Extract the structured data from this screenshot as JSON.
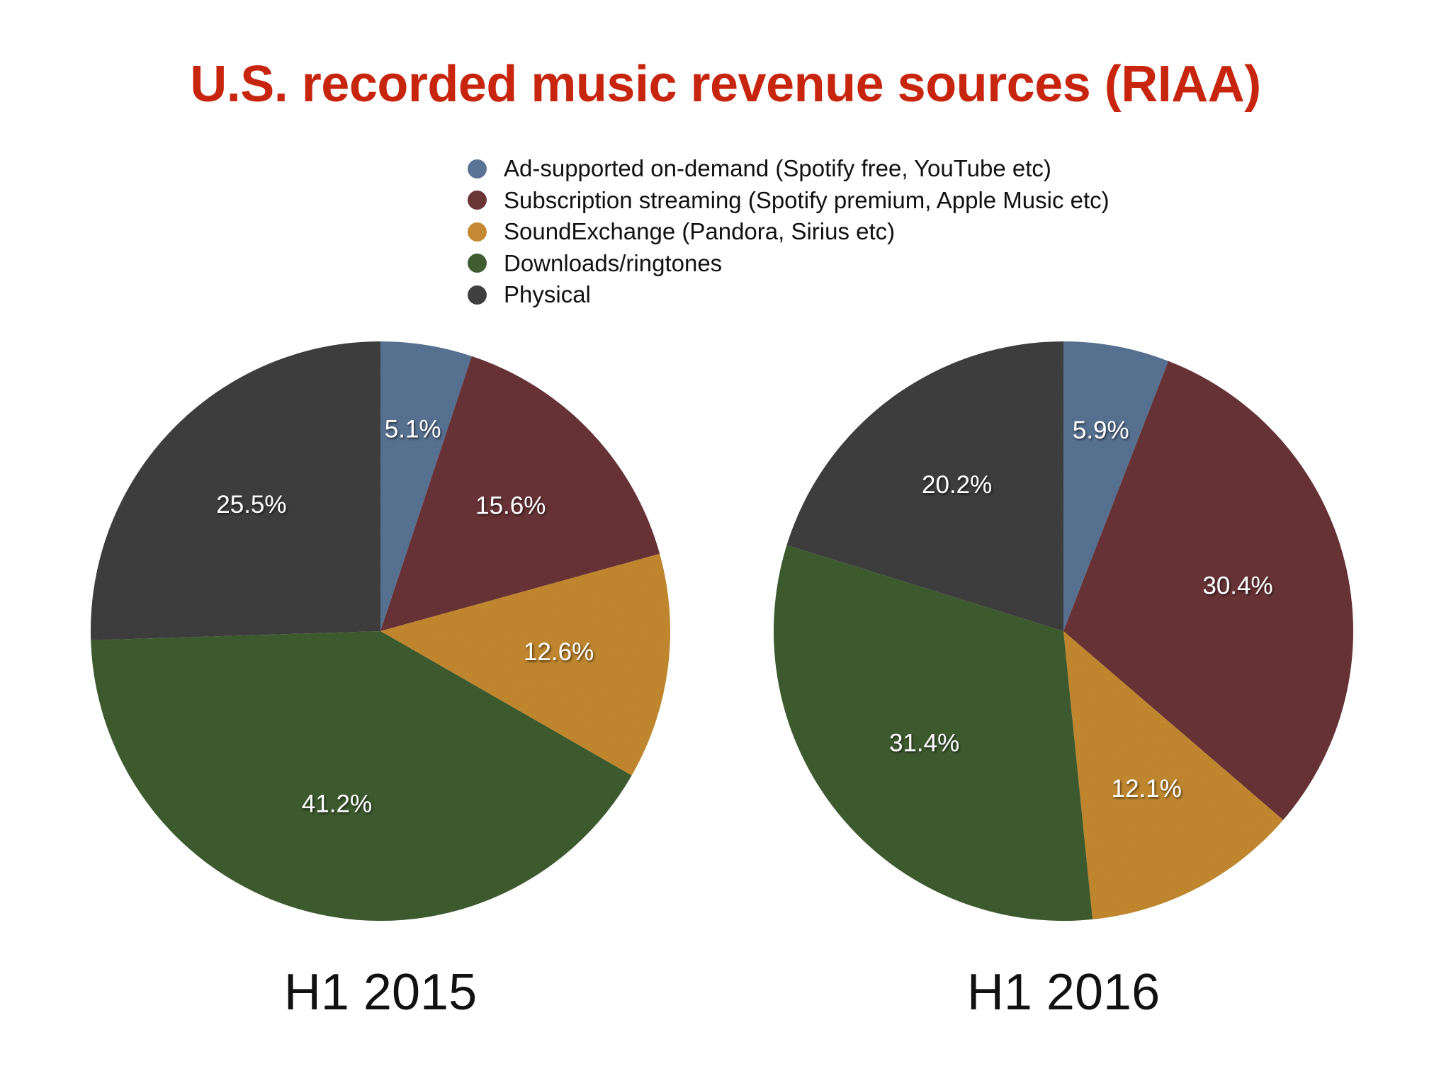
{
  "chart_data": {
    "type": "pie",
    "title": "U.S. recorded music revenue sources (RIAA)",
    "legend_position": "top-center",
    "categories": [
      {
        "name": "Ad-supported on-demand (Spotify free, YouTube etc)",
        "color": "#5a7394"
      },
      {
        "name": "Subscription streaming (Spotify premium, Apple Music etc)",
        "color": "#6b3538"
      },
      {
        "name": "SoundExchange (Pandora, Sirius etc)",
        "color": "#c48a33"
      },
      {
        "name": "Downloads/ringtones",
        "color": "#3f5d31"
      },
      {
        "name": "Physical",
        "color": "#3f3f3f"
      }
    ],
    "pies": [
      {
        "caption": "H1 2015",
        "values": [
          5.1,
          15.6,
          12.6,
          41.2,
          25.5
        ],
        "labels": [
          "5.1%",
          "15.6%",
          "12.6%",
          "41.2%",
          "25.5%"
        ]
      },
      {
        "caption": "H1 2016",
        "values": [
          5.9,
          30.4,
          12.1,
          31.4,
          20.2
        ],
        "labels": [
          "5.9%",
          "30.4%",
          "12.1%",
          "31.4%",
          "20.2%"
        ]
      }
    ]
  }
}
